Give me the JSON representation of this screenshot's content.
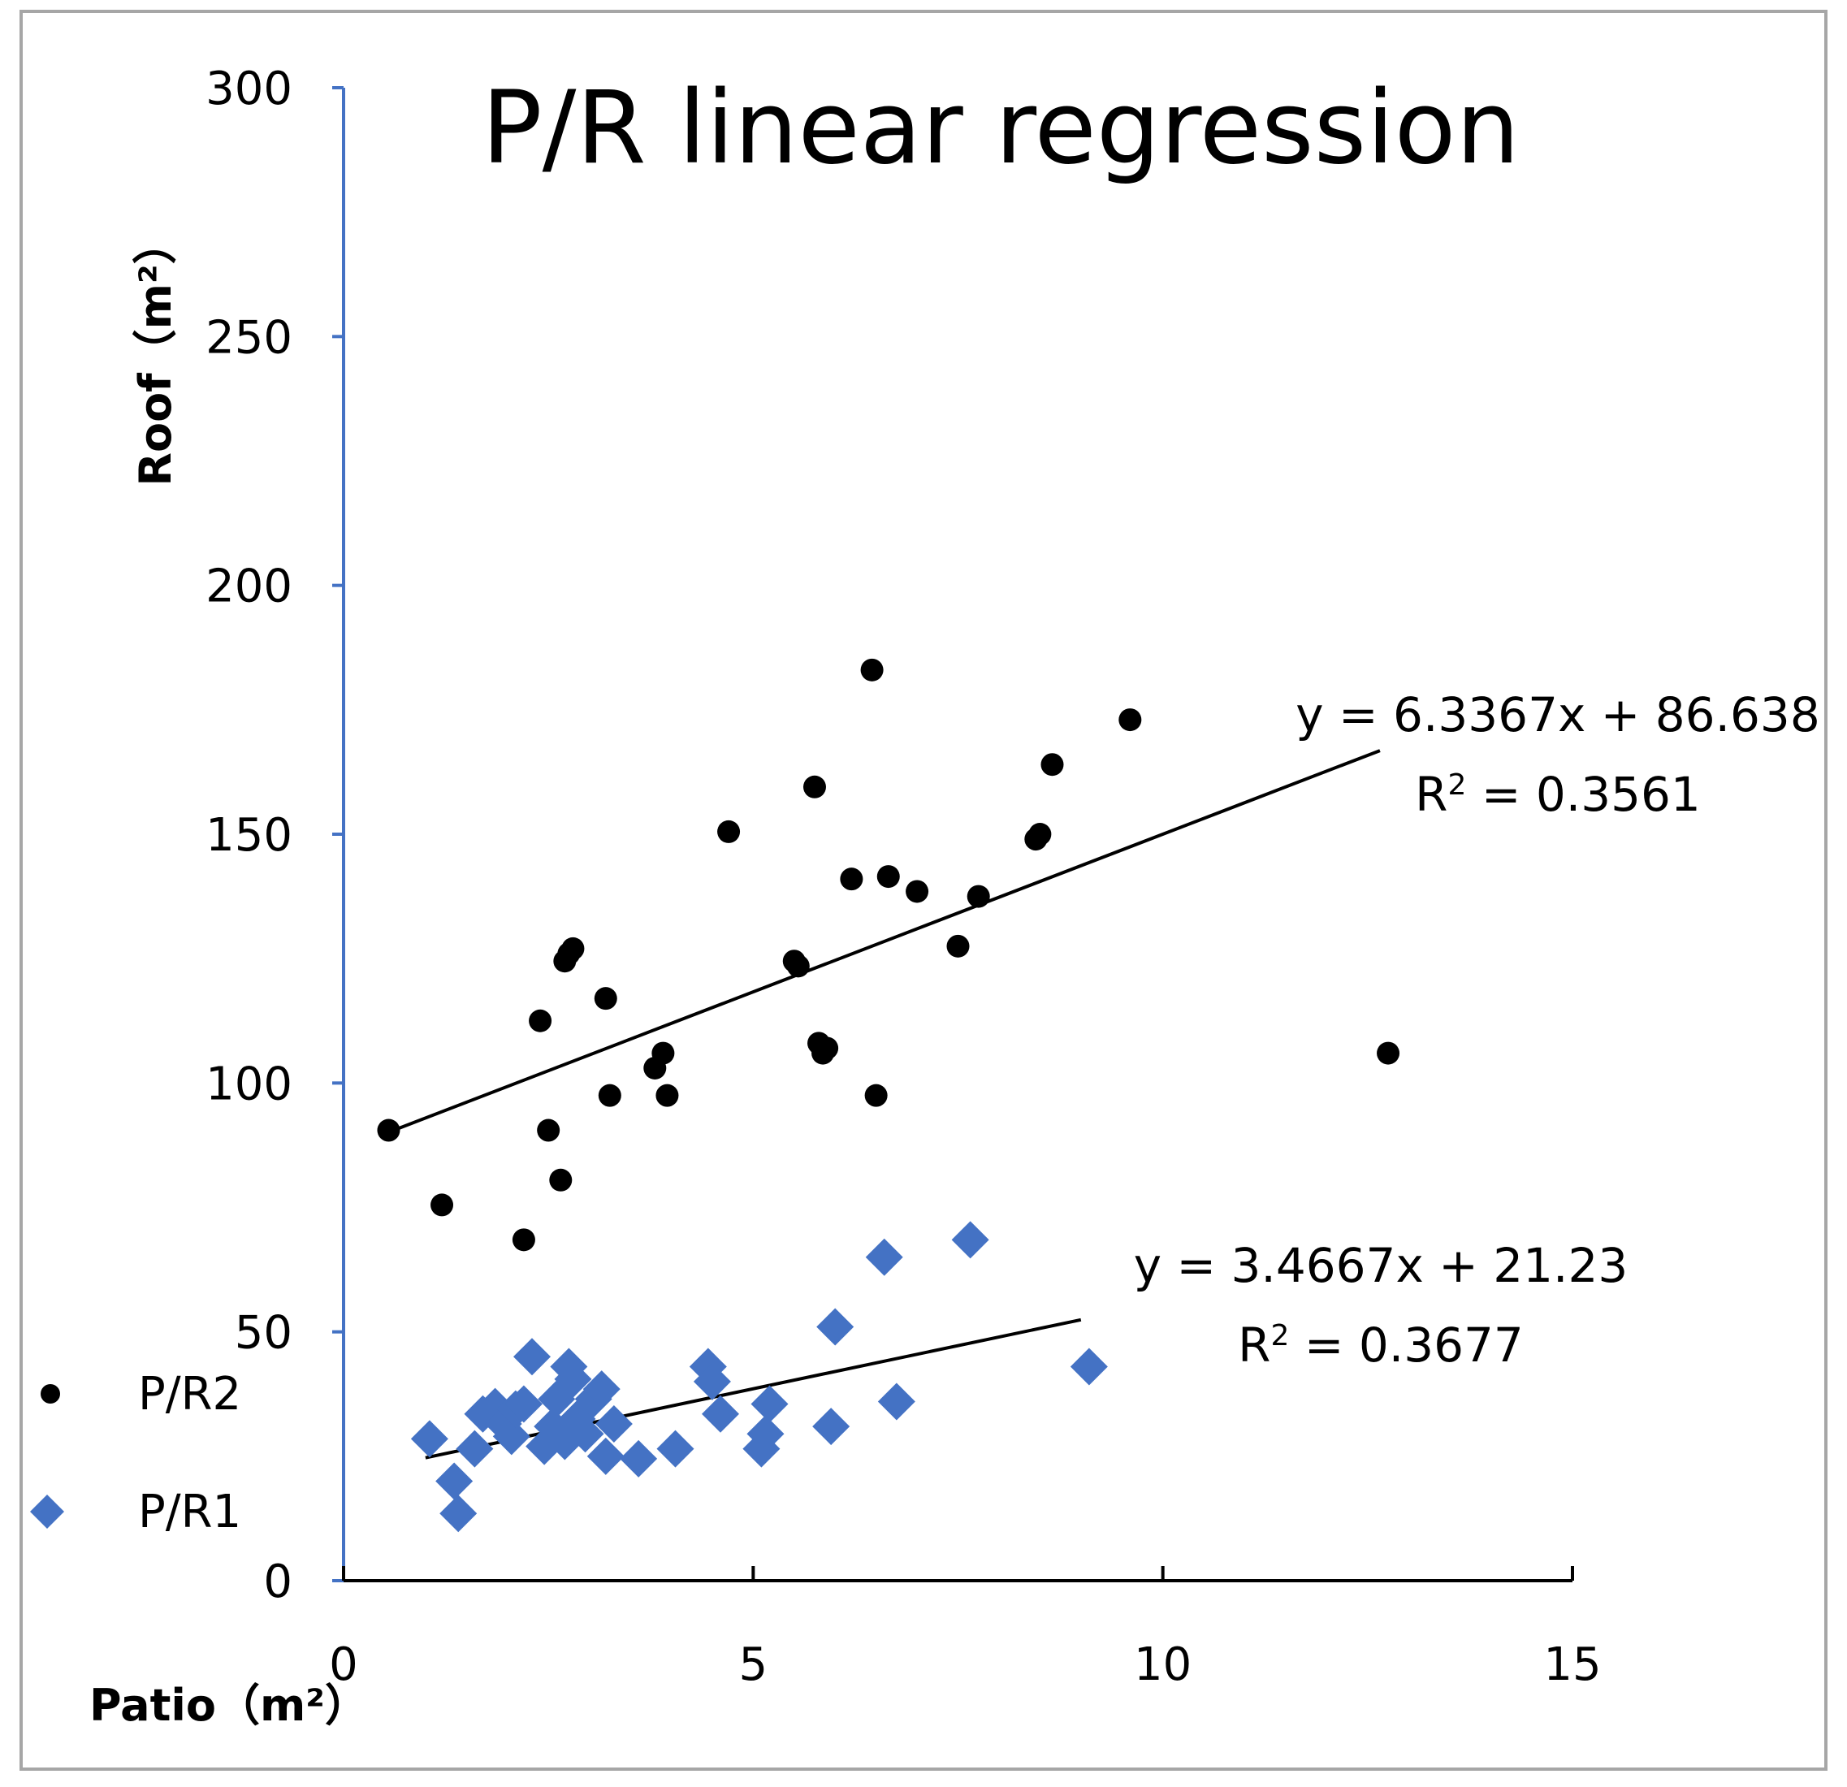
{
  "chart_data": {
    "type": "scatter",
    "title": "P/R  linear regression",
    "xlabel": "Patio（m²）",
    "ylabel": "Roof（m²）",
    "xlim": [
      0,
      15
    ],
    "ylim": [
      0,
      300
    ],
    "xticks": [
      0,
      5,
      10,
      15
    ],
    "yticks": [
      0,
      50,
      100,
      150,
      200,
      250,
      300
    ],
    "legend_position": "bottom-left",
    "series": [
      {
        "name": "P/R2",
        "marker": "circle",
        "color": "#000000",
        "points": [
          [
            0.55,
            90.5
          ],
          [
            1.2,
            75.5
          ],
          [
            2.2,
            68.5
          ],
          [
            2.4,
            112.5
          ],
          [
            2.5,
            90.5
          ],
          [
            2.65,
            80.5
          ],
          [
            2.7,
            124.5
          ],
          [
            2.75,
            126
          ],
          [
            2.8,
            127
          ],
          [
            3.2,
            117
          ],
          [
            3.25,
            97.5
          ],
          [
            3.8,
            103
          ],
          [
            3.9,
            106
          ],
          [
            3.95,
            97.5
          ],
          [
            4.7,
            150.5
          ],
          [
            5.5,
            124.5
          ],
          [
            5.55,
            123.5
          ],
          [
            5.75,
            159.5
          ],
          [
            5.8,
            108
          ],
          [
            5.85,
            106
          ],
          [
            5.9,
            107
          ],
          [
            6.2,
            141
          ],
          [
            6.45,
            183
          ],
          [
            6.5,
            97.5
          ],
          [
            6.65,
            141.5
          ],
          [
            7.0,
            138.5
          ],
          [
            7.5,
            127.5
          ],
          [
            7.75,
            137.5
          ],
          [
            8.45,
            149
          ],
          [
            8.5,
            150
          ],
          [
            8.65,
            164
          ],
          [
            9.6,
            173
          ],
          [
            12.75,
            106
          ]
        ],
        "trendline": {
          "slope": 6.3367,
          "intercept": 86.638,
          "x_range": [
            0.55,
            12.65
          ],
          "equation": "y = 6.3367x + 86.638",
          "r2_prefix": "R",
          "r2_exp": "2",
          "r2_value": " = 0.3561"
        }
      },
      {
        "name": "P/R1",
        "marker": "diamond",
        "color": "#4472c4",
        "points": [
          [
            1.05,
            28.5
          ],
          [
            1.35,
            20
          ],
          [
            1.4,
            13.5
          ],
          [
            1.6,
            26.5
          ],
          [
            1.7,
            33.5
          ],
          [
            1.85,
            35
          ],
          [
            1.95,
            31.5
          ],
          [
            2.05,
            29
          ],
          [
            2.1,
            34.5
          ],
          [
            2.2,
            35.5
          ],
          [
            2.3,
            45
          ],
          [
            2.45,
            27
          ],
          [
            2.55,
            31
          ],
          [
            2.6,
            36.5
          ],
          [
            2.7,
            28
          ],
          [
            2.75,
            43
          ],
          [
            2.8,
            40.5
          ],
          [
            2.85,
            32.5
          ],
          [
            2.95,
            29.5
          ],
          [
            3.05,
            36.5
          ],
          [
            3.15,
            38.5
          ],
          [
            3.2,
            25
          ],
          [
            3.3,
            31.5
          ],
          [
            3.6,
            24.5
          ],
          [
            4.05,
            26.5
          ],
          [
            4.45,
            43
          ],
          [
            4.5,
            40
          ],
          [
            4.6,
            33.5
          ],
          [
            5.1,
            26.5
          ],
          [
            5.15,
            29.5
          ],
          [
            5.2,
            35.5
          ],
          [
            5.95,
            31
          ],
          [
            6.0,
            51
          ],
          [
            6.6,
            65
          ],
          [
            6.75,
            36
          ],
          [
            7.65,
            68.5
          ],
          [
            9.1,
            43
          ]
        ],
        "trendline": {
          "slope": 3.4667,
          "intercept": 21.23,
          "x_range": [
            1.0,
            9.0
          ],
          "equation": "y = 3.4667x + 21.23",
          "r2_prefix": "R",
          "r2_exp": "2",
          "r2_value": " = 0.3677"
        }
      }
    ]
  }
}
